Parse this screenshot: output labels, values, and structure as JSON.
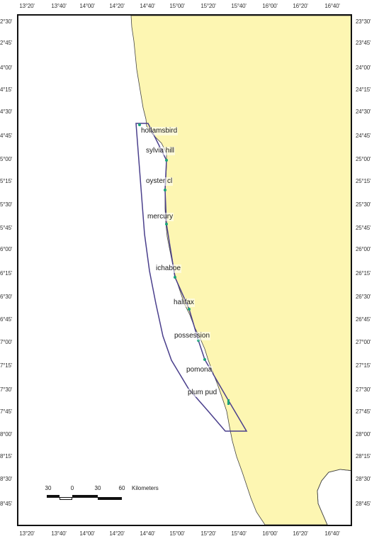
{
  "longitude_labels": [
    "13°20'",
    "13°40'",
    "14°00'",
    "14°20'",
    "14°40'",
    "15°00'",
    "15°20'",
    "15°40'",
    "16°00'",
    "16°20'",
    "16°40'"
  ],
  "latitude_labels_left": [
    "2°30'",
    "2°45'",
    "4°00'",
    "4°15'",
    "4°30'",
    "4°45'",
    "5°00'",
    "5°15'",
    "5°30'",
    "5°45'",
    "6°00'",
    "6°15'",
    "6°30'",
    "6°45'",
    "7°00'",
    "7°15'",
    "7°30'",
    "7°45'",
    "8°00'",
    "8°15'",
    "8°30'",
    "8°45'"
  ],
  "latitude_labels_right": [
    "23°30'",
    "23°45'",
    "24°00'",
    "24°15'",
    "24°30'",
    "24°45'",
    "25°00'",
    "25°15'",
    "25°30'",
    "25°45'",
    "26°00'",
    "26°15'",
    "26°30'",
    "26°45'",
    "27°00'",
    "27°15'",
    "27°30'",
    "27°45'",
    "28°00'",
    "28°15'",
    "28°30'",
    "28°45'"
  ],
  "sites": [
    {
      "name": "hollamsbird"
    },
    {
      "name": "sylvia hill"
    },
    {
      "name": "oyster cl"
    },
    {
      "name": "mercury"
    },
    {
      "name": "ichaboe"
    },
    {
      "name": "halifax"
    },
    {
      "name": "possession"
    },
    {
      "name": "pomona"
    },
    {
      "name": "plum pud"
    }
  ],
  "scale_bar": {
    "ticks": [
      "30",
      "0",
      "30",
      "60"
    ],
    "units": "Kilometers"
  },
  "colors": {
    "land": "#fdf6b2",
    "sea": "#ffffff",
    "study_area_outline": "#4a3f8c",
    "site_marker": "#1aa37a",
    "frame": "#111111"
  }
}
